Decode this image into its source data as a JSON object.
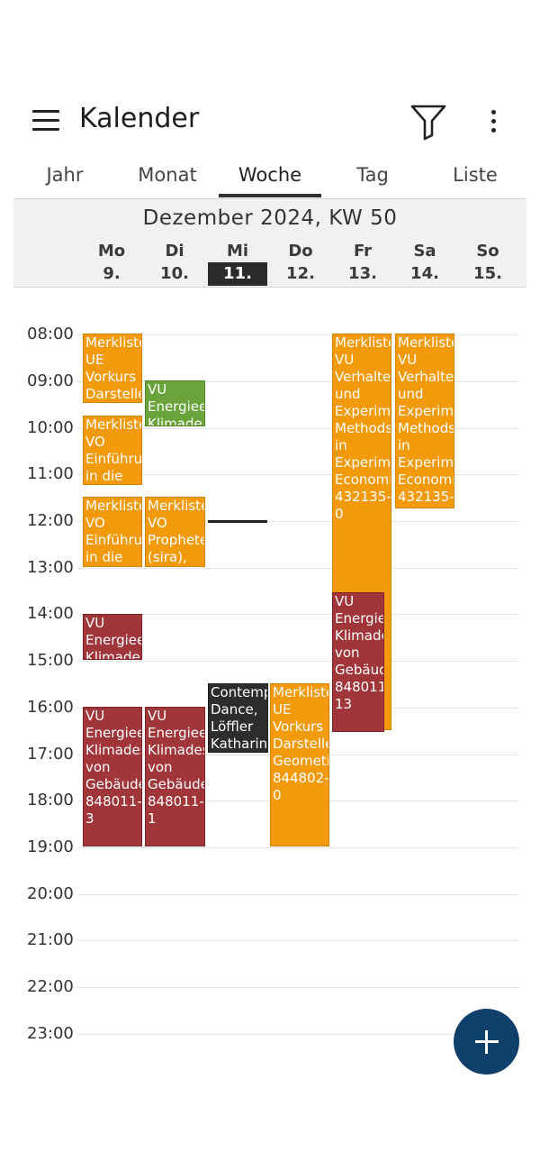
{
  "app": {
    "title": "Kalender"
  },
  "tabs": [
    "Jahr",
    "Monat",
    "Woche",
    "Tag",
    "Liste"
  ],
  "active_tab": "Woche",
  "week": {
    "title": "Dezember 2024, KW 50",
    "days": [
      {
        "name": "Mo",
        "date": "9."
      },
      {
        "name": "Di",
        "date": "10."
      },
      {
        "name": "Mi",
        "date": "11."
      },
      {
        "name": "Do",
        "date": "12."
      },
      {
        "name": "Fr",
        "date": "13."
      },
      {
        "name": "Sa",
        "date": "14."
      },
      {
        "name": "So",
        "date": "15."
      }
    ],
    "today": "Mi"
  },
  "hours": [
    "08:00",
    "09:00",
    "10:00",
    "11:00",
    "12:00",
    "13:00",
    "14:00",
    "15:00",
    "16:00",
    "17:00",
    "18:00",
    "19:00",
    "20:00",
    "21:00",
    "22:00",
    "23:00"
  ],
  "events": [
    {
      "text": "Merkliste\nUE\nVorkurs\nDarstelle",
      "color": "orange"
    },
    {
      "text": "Merkliste\nVO\nEinführu\nin die",
      "color": "orange"
    },
    {
      "text": "Merkliste\nVO\nEinführu\nin die",
      "color": "orange"
    },
    {
      "text": "VU\nEnergiee\nKlimade",
      "color": "red"
    },
    {
      "text": "VU\nEnergiee\nKlimades\nvon\nGebäude\n848011-\n3",
      "color": "red"
    },
    {
      "text": "VU\nEnergiee\nKlimade",
      "color": "green"
    },
    {
      "text": "Merkliste\nVO\nProphete\n(sira),",
      "color": "orange"
    },
    {
      "text": "VU\nEnergiee\nKlimades\nvon\nGebäude\n848011-\n1",
      "color": "red"
    },
    {
      "text": "Contemp\nDance,\nLöffler\nKatharin",
      "color": "black"
    },
    {
      "text": "Merkliste\nUE\nVorkurs\nDarstelle\nGeometi\n844802-\n0",
      "color": "orange"
    },
    {
      "text": "Merkliste\nVU\nVerhalte\nund\nExperim\nMethods\nin\nExperim\nEconomi\n432135-\n0",
      "color": "orange"
    },
    {
      "text": "VU\nEnergiee\nKlimade\nvon\nGebäud\n848011\n13",
      "color": "red"
    },
    {
      "text": "Merkliste\nVU\nVerhalte\nund\nExperim\nMethods\nin\nExperim\nEconomi\n432135-",
      "color": "orange"
    }
  ],
  "colors": {
    "orange": "#f39a0a",
    "green": "#69a33a",
    "red": "#a0353a",
    "black": "#2d2d2d",
    "fab": "#0f3f6b"
  },
  "icons": {
    "menu": "hamburger-icon",
    "filter": "filter-icon",
    "more": "more-vertical-icon",
    "fab": "plus-icon"
  }
}
